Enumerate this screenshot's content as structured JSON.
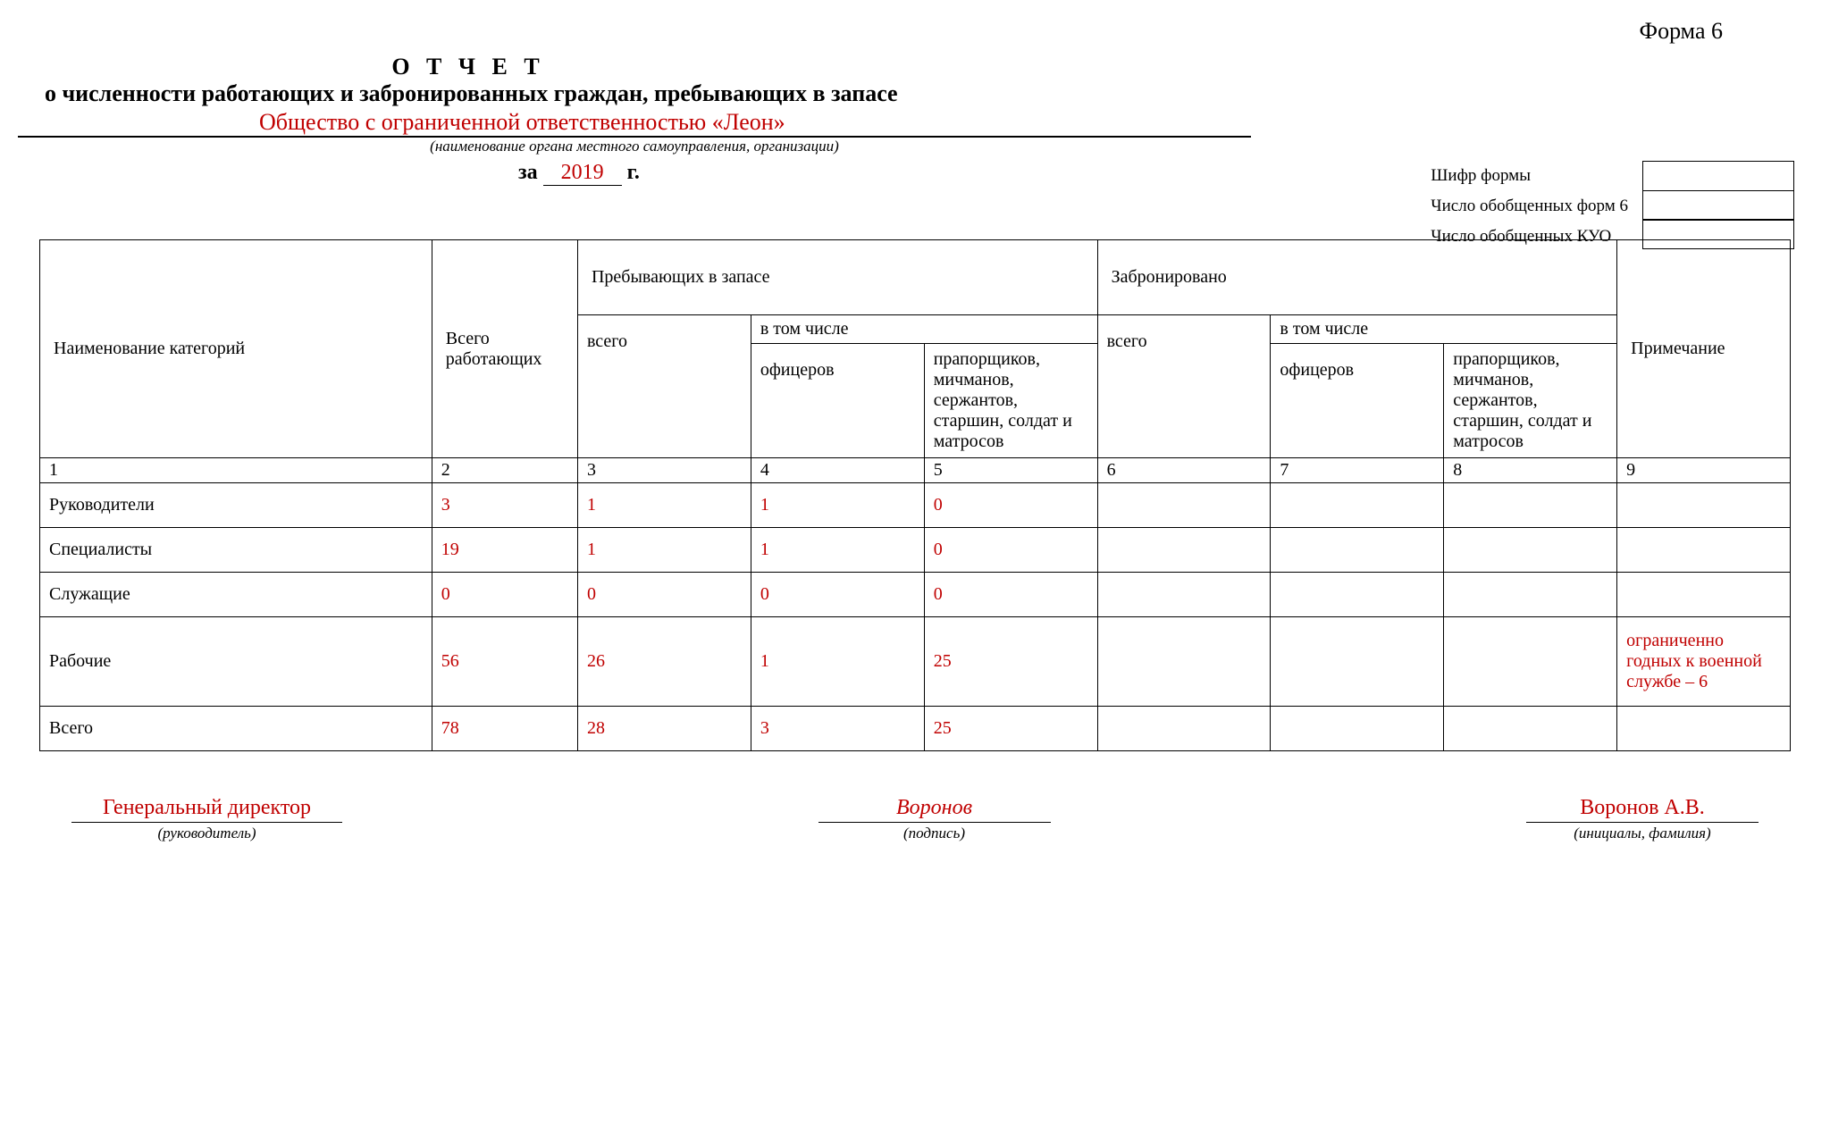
{
  "form_number": "Форма 6",
  "title1": "О Т Ч Е Т",
  "title2": "о численности работающих и забронированных граждан, пребывающих в запасе",
  "organization": "Общество с ограниченной ответственностью «Леон»",
  "org_hint": "(наименование органа местного самоуправления, организации)",
  "year_prefix": "за",
  "year": "2019",
  "year_suffix": "г.",
  "meta": {
    "cipher": "Шифр формы",
    "forms6": "Число обобщенных форм 6",
    "kuo": "Число обобщенных КУО"
  },
  "headers": {
    "category": "Наименование категорий",
    "total_workers": "Всего работающих",
    "reserve": "Пребывающих в запасе",
    "booked": "Забронировано",
    "note": "Примечание",
    "including": "в том числе",
    "total": "всего",
    "officers": "офицеров",
    "warrant": "прапорщиков, мичманов, сержантов, старшин, солдат и матросов"
  },
  "col_nums": [
    "1",
    "2",
    "3",
    "4",
    "5",
    "6",
    "7",
    "8",
    "9"
  ],
  "rows": [
    {
      "label": "Руководители",
      "c2": "3",
      "c3": "1",
      "c4": "1",
      "c5": "0",
      "c6": "",
      "c7": "",
      "c8": "",
      "c9": ""
    },
    {
      "label": "Специалисты",
      "c2": "19",
      "c3": "1",
      "c4": "1",
      "c5": "0",
      "c6": "",
      "c7": "",
      "c8": "",
      "c9": ""
    },
    {
      "label": "Служащие",
      "c2": "0",
      "c3": "0",
      "c4": "0",
      "c5": "0",
      "c6": "",
      "c7": "",
      "c8": "",
      "c9": ""
    },
    {
      "label": "Рабочие",
      "c2": "56",
      "c3": "26",
      "c4": "1",
      "c5": "25",
      "c6": "",
      "c7": "",
      "c8": "",
      "c9": "ограниченно годных к военной службе – 6"
    },
    {
      "label": "Всего",
      "c2": "78",
      "c3": "28",
      "c4": "3",
      "c5": "25",
      "c6": "",
      "c7": "",
      "c8": "",
      "c9": ""
    }
  ],
  "signatures": {
    "role": "Генеральный директор",
    "role_hint": "(руководитель)",
    "sign": "Воронов",
    "sign_hint": "(подпись)",
    "name": "Воронов А.В.",
    "name_hint": "(инициалы, фамилия)"
  },
  "colors": {
    "accent": "#c00000",
    "text": "#000000",
    "background": "#ffffff"
  }
}
